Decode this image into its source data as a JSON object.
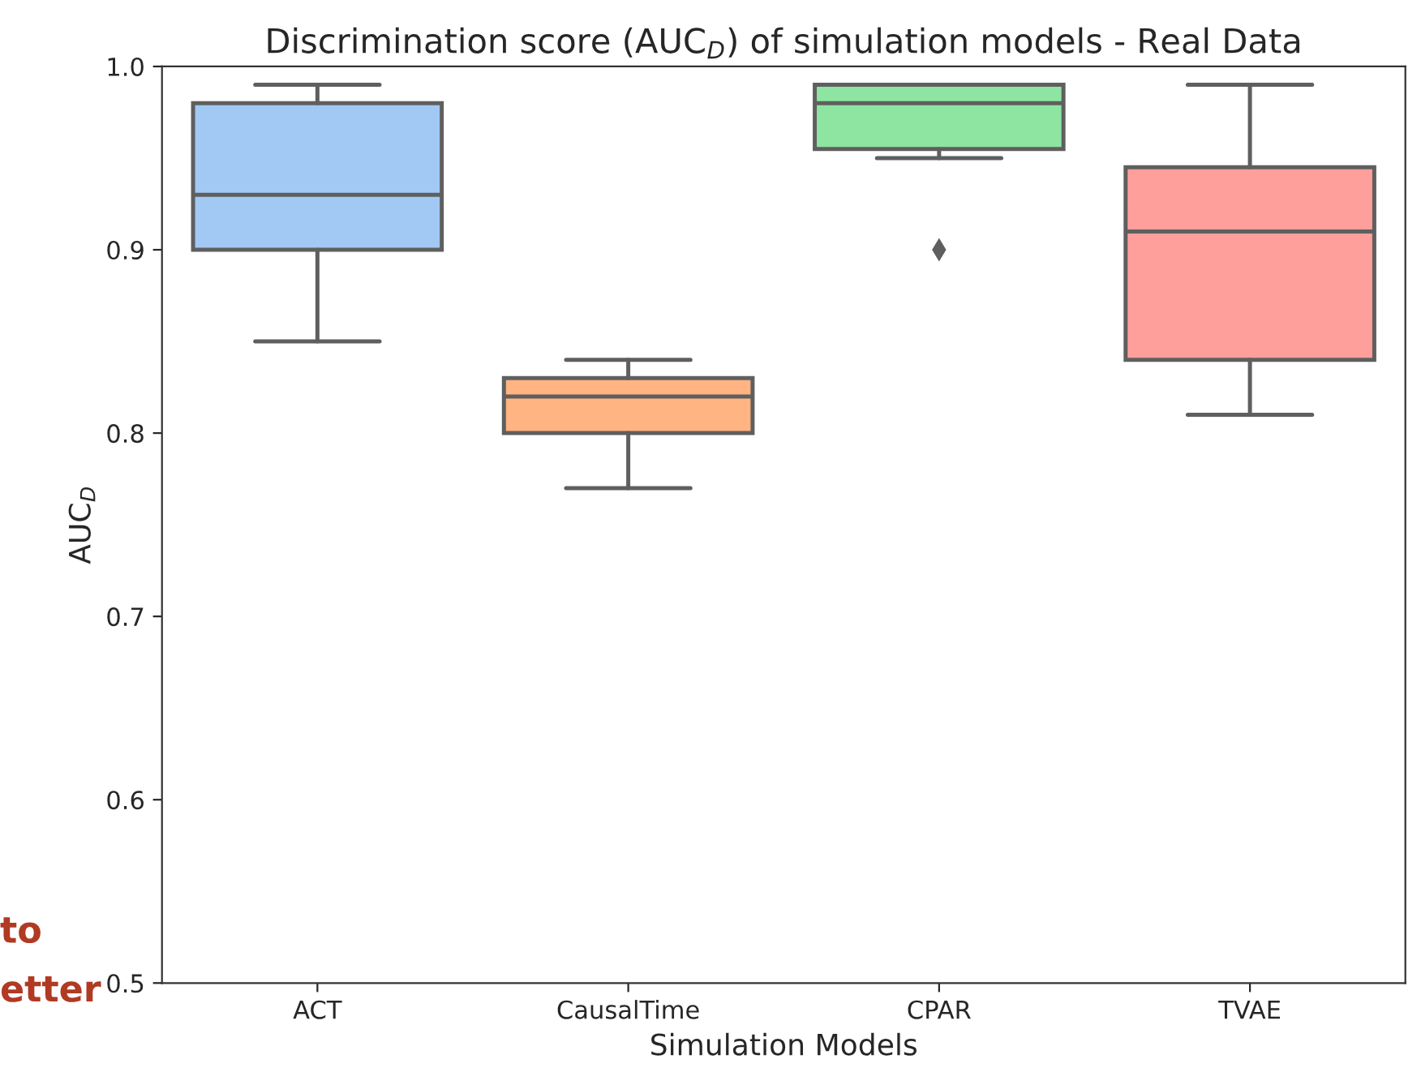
{
  "chart_data": {
    "type": "box",
    "title": "Discrimination score (AUC$_{D}$) of simulation models - Real Data",
    "xlabel": "Simulation Models",
    "ylabel": "AUC$_{D}$",
    "categories": [
      "ACT",
      "CausalTime",
      "CPAR",
      "TVAE"
    ],
    "colors": [
      "#a1c9f4",
      "#ffb482",
      "#8de5a1",
      "#ff9f9b"
    ],
    "boxes": [
      {
        "low": 0.85,
        "q1": 0.9,
        "median": 0.93,
        "q3": 0.98,
        "high": 0.99
      },
      {
        "low": 0.77,
        "q1": 0.8,
        "median": 0.82,
        "q3": 0.83,
        "high": 0.84
      },
      {
        "low": 0.95,
        "q1": 0.955,
        "median": 0.98,
        "q3": 0.99,
        "high": 0.99,
        "outliers": [
          0.9
        ]
      },
      {
        "low": 0.81,
        "q1": 0.84,
        "median": 0.91,
        "q3": 0.945,
        "high": 0.99
      }
    ],
    "ylim": [
      0.5,
      1.0
    ],
    "yticks": [
      0.5,
      0.6,
      0.7,
      0.8,
      0.9,
      {
        "value": 1,
        "label": "1.0"
      }
    ],
    "grid": false,
    "legend": false,
    "annotations": [
      "to",
      "etter"
    ]
  }
}
